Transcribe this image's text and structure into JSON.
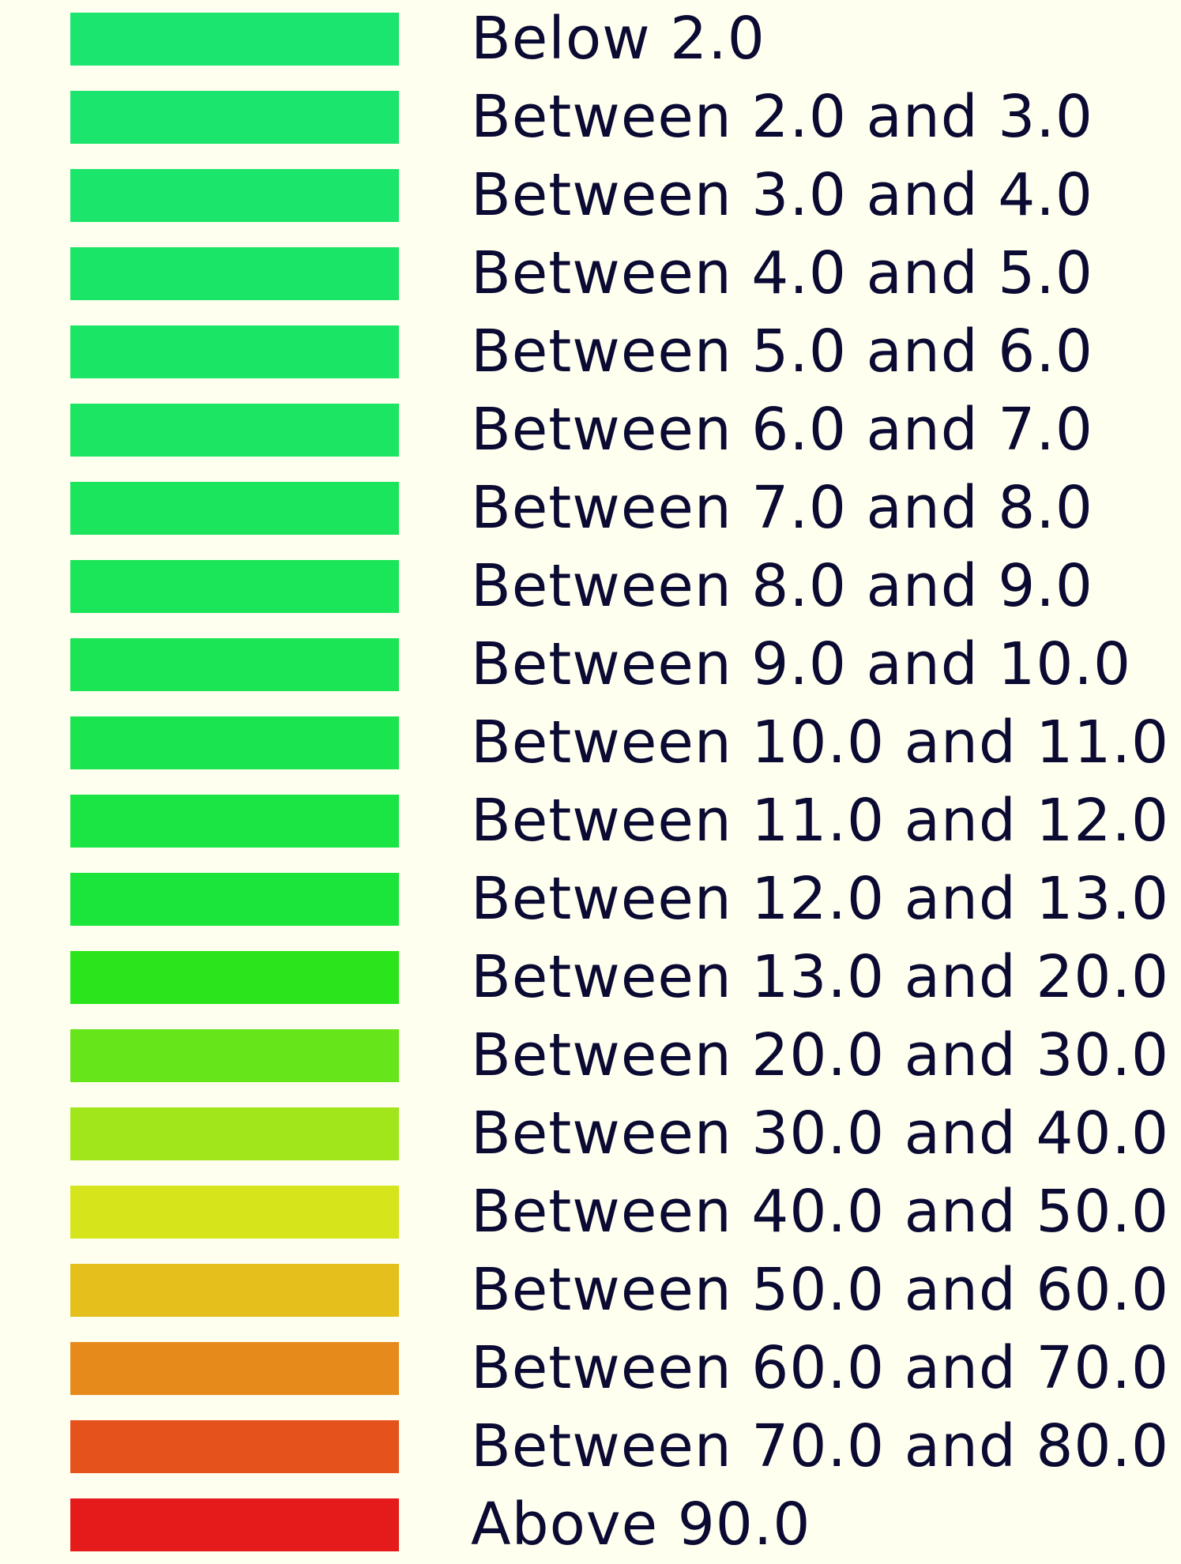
{
  "legend": {
    "items": [
      {
        "label": "Below 2.0",
        "color": "#1be56e"
      },
      {
        "label": "Between 2.0 and 3.0",
        "color": "#1be56c"
      },
      {
        "label": "Between 3.0 and 4.0",
        "color": "#1be56a"
      },
      {
        "label": "Between 4.0 and 5.0",
        "color": "#1be567"
      },
      {
        "label": "Between 5.0 and 6.0",
        "color": "#1be564"
      },
      {
        "label": "Between 6.0 and 7.0",
        "color": "#1be561"
      },
      {
        "label": "Between 7.0 and 8.0",
        "color": "#1be55d"
      },
      {
        "label": "Between 8.0 and 9.0",
        "color": "#1be559"
      },
      {
        "label": "Between 9.0 and 10.0",
        "color": "#1be554"
      },
      {
        "label": "Between 10.0 and 11.0",
        "color": "#1be54e"
      },
      {
        "label": "Between 11.0 and 12.0",
        "color": "#1be545"
      },
      {
        "label": "Between 12.0 and 13.0",
        "color": "#1be53a"
      },
      {
        "label": "Between 13.0 and 20.0",
        "color": "#2ae51b"
      },
      {
        "label": "Between 20.0 and 30.0",
        "color": "#66e51b"
      },
      {
        "label": "Between 30.0 and 40.0",
        "color": "#a1e51b"
      },
      {
        "label": "Between 40.0 and 50.0",
        "color": "#d6e51b"
      },
      {
        "label": "Between 50.0 and 60.0",
        "color": "#e5bf1b"
      },
      {
        "label": "Between 60.0 and 70.0",
        "color": "#e58a1b"
      },
      {
        "label": "Between 70.0 and 80.0",
        "color": "#e5521b"
      },
      {
        "label": "Above 90.0",
        "color": "#e51b1b"
      }
    ]
  }
}
